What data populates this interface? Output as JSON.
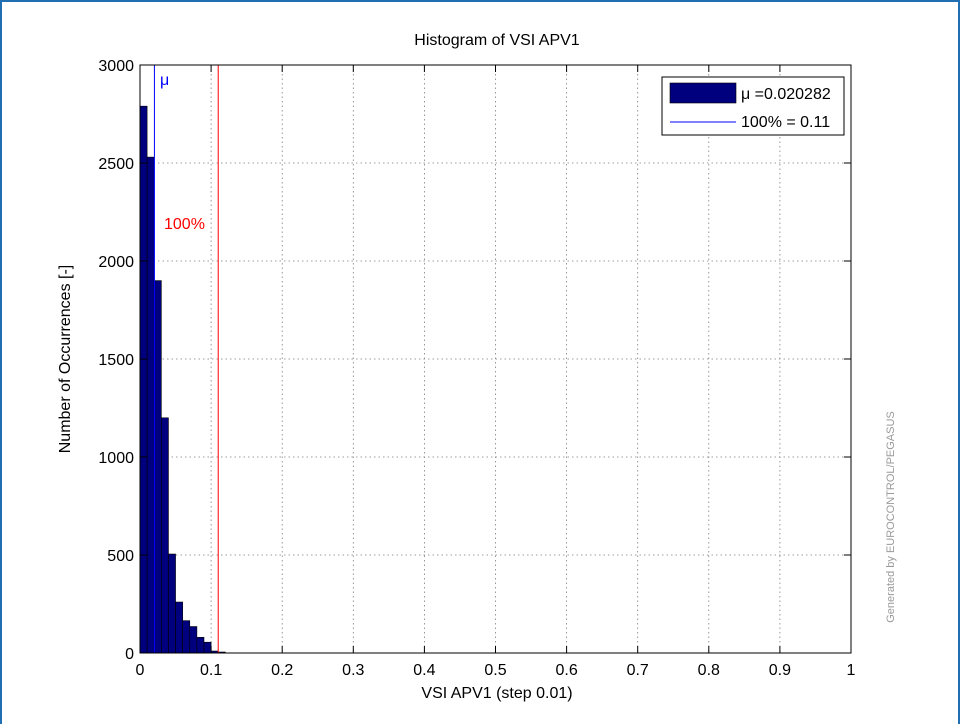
{
  "chart_data": {
    "type": "bar",
    "title": "Histogram of VSI APV1",
    "xlabel": "VSI APV1 (step 0.01)",
    "ylabel": "Number of Occurrences [-]",
    "xlim": [
      0,
      1
    ],
    "ylim": [
      0,
      3000
    ],
    "grid": true,
    "bin_width": 0.01,
    "xticks": [
      0,
      0.1,
      0.2,
      0.3,
      0.4,
      0.5,
      0.6,
      0.7,
      0.8,
      0.9,
      1
    ],
    "xtick_labels": [
      "0",
      "0.1",
      "0.2",
      "0.3",
      "0.4",
      "0.5",
      "0.6",
      "0.7",
      "0.8",
      "0.9",
      "1"
    ],
    "yticks": [
      0,
      500,
      1000,
      1500,
      2000,
      2500,
      3000
    ],
    "ytick_labels": [
      "0",
      "500",
      "1000",
      "1500",
      "2000",
      "2500",
      "3000"
    ],
    "bin_starts": [
      0,
      0.01,
      0.02,
      0.03,
      0.04,
      0.05,
      0.06,
      0.07,
      0.08,
      0.09,
      0.1,
      0.11
    ],
    "values": [
      2790,
      2530,
      1900,
      1200,
      505,
      260,
      165,
      135,
      80,
      55,
      10,
      5
    ],
    "mean_line": {
      "x": 0.020282,
      "label": "μ",
      "color": "#0000ff"
    },
    "limit_line": {
      "x": 0.11,
      "label": "100%",
      "color": "#ff0000"
    },
    "bar_color": "#00007f",
    "legend": {
      "position": "top-right",
      "entries": [
        {
          "label": "μ =0.020282",
          "kind": "patch",
          "color": "#00007f"
        },
        {
          "label": "100% = 0.11",
          "kind": "line",
          "color": "#0000ff"
        }
      ]
    },
    "watermark": "Generated by EUROCONTROL/PEGASUS"
  }
}
